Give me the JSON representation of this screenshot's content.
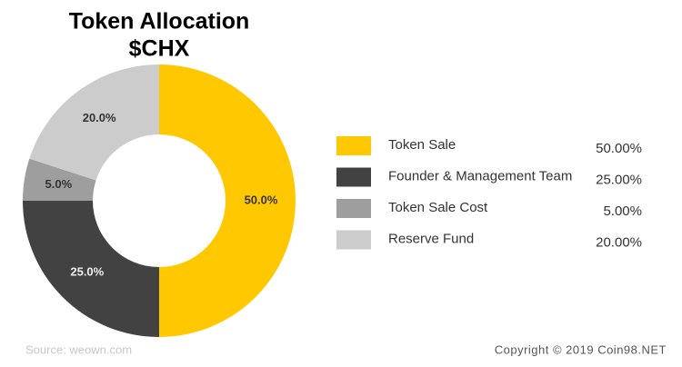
{
  "chart_data": {
    "type": "pie",
    "title": "Token Allocation",
    "subtitle": "$CHX",
    "categories": [
      "Token Sale",
      "Founder & Management Team",
      "Token Sale Cost",
      "Reserve Fund"
    ],
    "values": [
      50,
      25,
      5,
      20
    ],
    "value_labels": [
      "50.0%",
      "25.0%",
      "5.0%",
      "20.0%"
    ],
    "legend_value_labels": [
      "50.00%",
      "25.00%",
      "5.00%",
      "20.00%"
    ],
    "colors": [
      "#ffc800",
      "#424242",
      "#9e9e9e",
      "#cccccc"
    ],
    "source": "Source: weown.com",
    "copyright": "Copyright © 2019 Coin98.NET"
  }
}
